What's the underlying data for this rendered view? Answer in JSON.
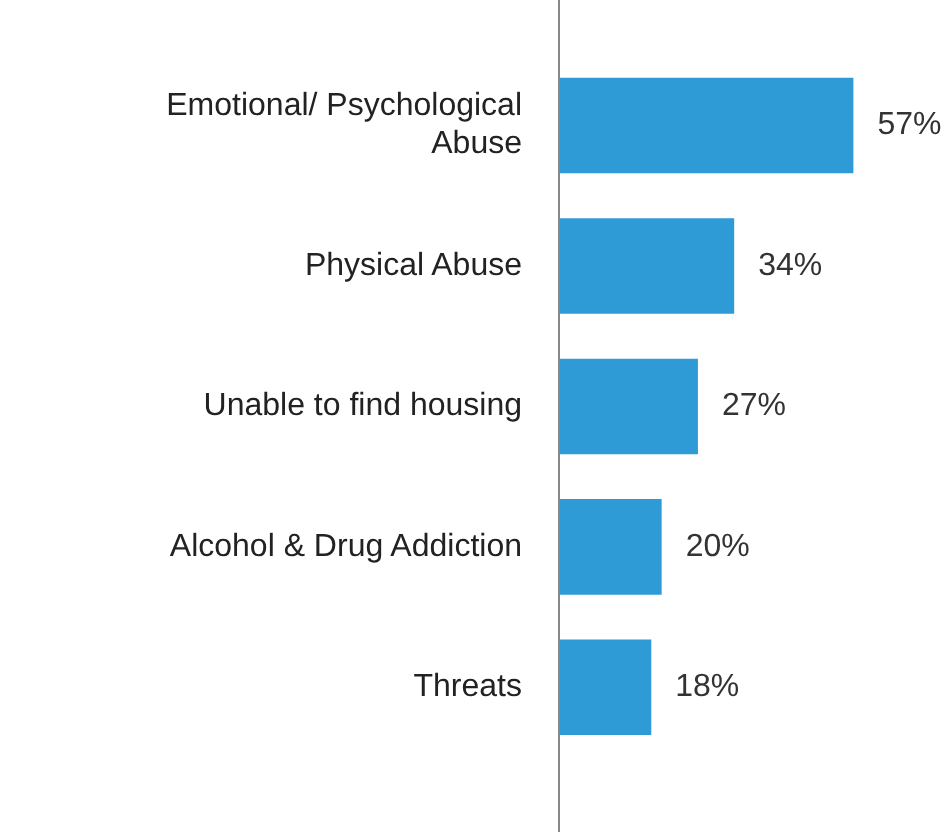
{
  "chart_data": {
    "type": "bar",
    "orientation": "horizontal",
    "categories": [
      "Emotional/ Psychological Abuse",
      "Physical Abuse",
      "Unable to find housing",
      "Alcohol & Drug Addiction",
      "Threats"
    ],
    "values": [
      57,
      34,
      27,
      20,
      18
    ],
    "value_labels": [
      "57%",
      "34%",
      "27%",
      "20%",
      "18%"
    ],
    "color": "#2e9bd6",
    "grid": false,
    "legend": false
  }
}
